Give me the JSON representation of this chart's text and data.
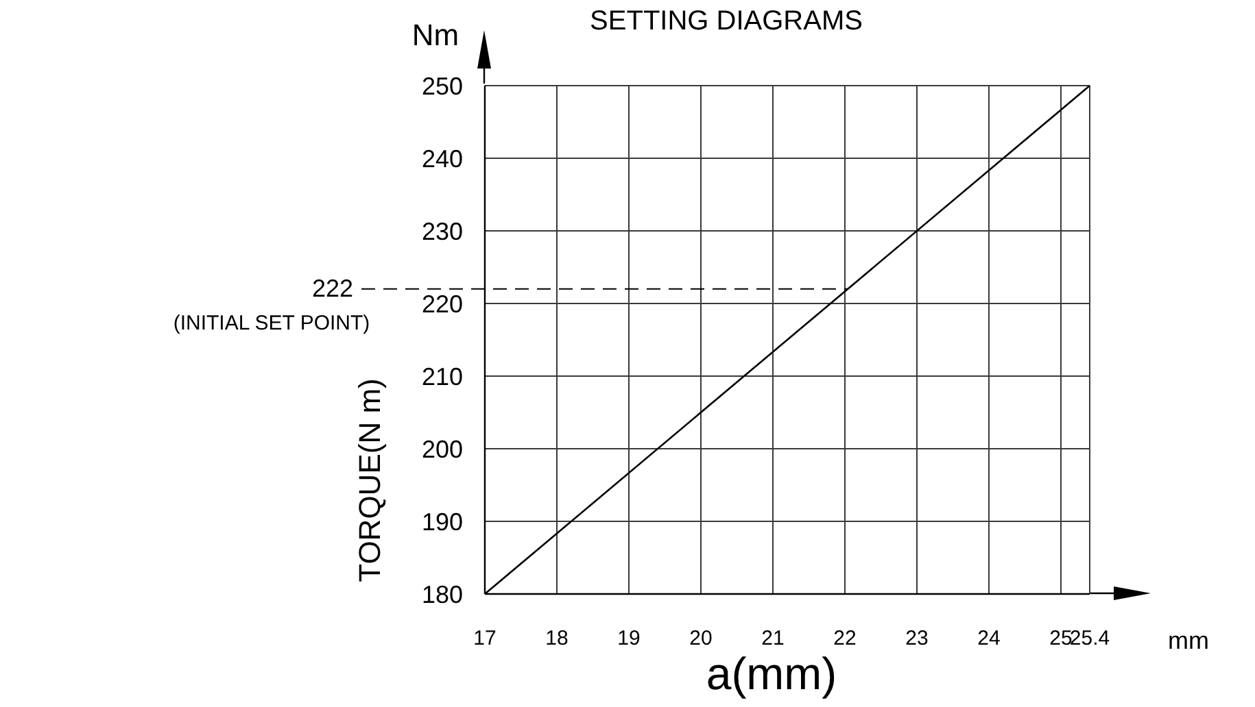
{
  "chart_data": {
    "type": "line",
    "title": "SETTING DIAGRAMS",
    "xlabel": "a(mm)",
    "ylabel": "TORQUE(N m)",
    "x": [
      17,
      25.4
    ],
    "series": [
      {
        "color": "#000000",
        "values": [
          180,
          250
        ]
      }
    ],
    "xlim": [
      17,
      25.4
    ],
    "ylim": [
      180,
      250
    ],
    "xticks": [
      17,
      18,
      19,
      20,
      21,
      22,
      23,
      24,
      25,
      25.4
    ],
    "yticks": [
      180,
      190,
      200,
      210,
      220,
      230,
      240,
      250
    ],
    "grid": true,
    "ref_lines": [
      {
        "axis": "y",
        "value": 222,
        "label": "222\n(INITIAL SET POINT)",
        "line_style": "dashed",
        "color": "#000000"
      }
    ],
    "annotations": [
      "Nm",
      "mm"
    ]
  }
}
